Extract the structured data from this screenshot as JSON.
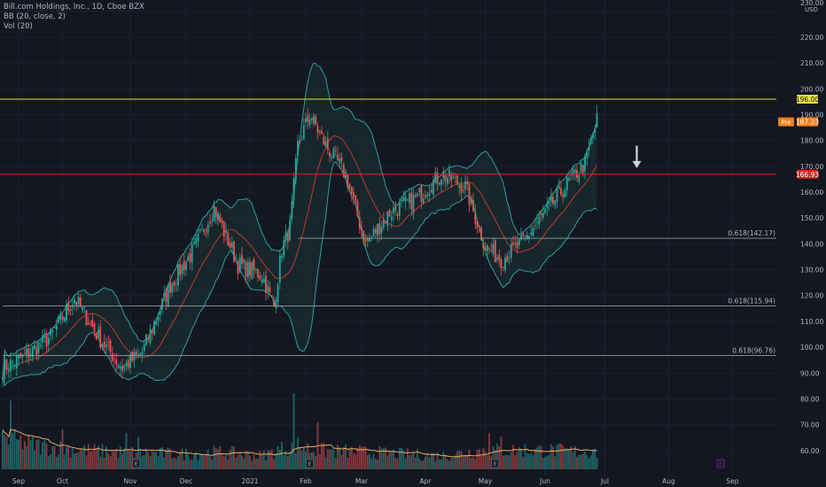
{
  "legend": {
    "symbol": "Bill.com Holdings, Inc., 1D, Cboe BZX",
    "bb": "BB (20, close, 2)",
    "vol": "Vol (20)"
  },
  "axis": {
    "currency": "USD",
    "top_label": "230.00"
  },
  "colors": {
    "background": "#131722",
    "up": "#26a69a",
    "down": "#ef5350",
    "bb_band": "#2aa198",
    "bb_fill": "#1a3a3a",
    "basis": "#c0392b",
    "vol_ma": "#f0a85c",
    "resistance": "#e8e23a",
    "support": "#e02424",
    "fib": "#9598a1",
    "pre_badge": "#f57f17",
    "arrow": "#d1d4dc",
    "earnings": "#9c27b0"
  },
  "chart_data": {
    "type": "candlestick",
    "symbol": "Bill.com Holdings, Inc.",
    "interval": "1D",
    "exchange": "Cboe BZX",
    "ylim": [
      50,
      233
    ],
    "y_ticks": [
      60,
      70,
      80,
      90,
      100,
      110,
      120,
      130,
      140,
      150,
      160,
      170,
      180,
      190,
      200,
      210,
      220,
      230
    ],
    "x_labels": [
      "Sep",
      "Oct",
      "Nov",
      "Dec",
      "2021",
      "Feb",
      "Mar",
      "Apr",
      "May",
      "Jun",
      "Jul",
      "Aug",
      "Sep"
    ],
    "close_anchors": [
      {
        "d": 0,
        "v": 92
      },
      {
        "d": 10,
        "v": 96
      },
      {
        "d": 24,
        "v": 104
      },
      {
        "d": 36,
        "v": 119
      },
      {
        "d": 48,
        "v": 104
      },
      {
        "d": 60,
        "v": 92
      },
      {
        "d": 70,
        "v": 98
      },
      {
        "d": 84,
        "v": 124
      },
      {
        "d": 96,
        "v": 138
      },
      {
        "d": 106,
        "v": 154
      },
      {
        "d": 118,
        "v": 132
      },
      {
        "d": 130,
        "v": 128
      },
      {
        "d": 136,
        "v": 116
      },
      {
        "d": 140,
        "v": 138
      },
      {
        "d": 144,
        "v": 146
      },
      {
        "d": 148,
        "v": 178
      },
      {
        "d": 154,
        "v": 190
      },
      {
        "d": 162,
        "v": 178
      },
      {
        "d": 172,
        "v": 167
      },
      {
        "d": 182,
        "v": 140
      },
      {
        "d": 194,
        "v": 152
      },
      {
        "d": 208,
        "v": 158
      },
      {
        "d": 220,
        "v": 167
      },
      {
        "d": 232,
        "v": 162
      },
      {
        "d": 242,
        "v": 139
      },
      {
        "d": 250,
        "v": 134
      },
      {
        "d": 260,
        "v": 140
      },
      {
        "d": 272,
        "v": 152
      },
      {
        "d": 284,
        "v": 164
      },
      {
        "d": 292,
        "v": 171
      },
      {
        "d": 298,
        "v": 188
      }
    ],
    "vol_anchors": [
      {
        "d": 0,
        "v": 16
      },
      {
        "d": 20,
        "v": 12
      },
      {
        "d": 40,
        "v": 10
      },
      {
        "d": 60,
        "v": 9
      },
      {
        "d": 90,
        "v": 8
      },
      {
        "d": 110,
        "v": 9
      },
      {
        "d": 130,
        "v": 7
      },
      {
        "d": 146,
        "v": 13
      },
      {
        "d": 156,
        "v": 10
      },
      {
        "d": 180,
        "v": 9
      },
      {
        "d": 220,
        "v": 7
      },
      {
        "d": 240,
        "v": 10
      },
      {
        "d": 270,
        "v": 10
      },
      {
        "d": 298,
        "v": 9
      }
    ],
    "vol_spikes": [
      {
        "d": 4,
        "v": 38
      },
      {
        "d": 30,
        "v": 22
      },
      {
        "d": 62,
        "v": 20
      },
      {
        "d": 68,
        "v": 18
      },
      {
        "d": 146,
        "v": 42
      },
      {
        "d": 158,
        "v": 26
      },
      {
        "d": 244,
        "v": 20
      },
      {
        "d": 250,
        "v": 18
      },
      {
        "d": 262,
        "v": 14
      },
      {
        "d": 296,
        "v": 11
      }
    ],
    "vol_scale_max": 45,
    "last_day_index": 298,
    "time_axis": [
      {
        "d": 8,
        "label": "Sep"
      },
      {
        "d": 30,
        "label": "Oct"
      },
      {
        "d": 64,
        "label": "Nov"
      },
      {
        "d": 92,
        "label": "Dec"
      },
      {
        "d": 124,
        "label": "2021"
      },
      {
        "d": 152,
        "label": "Feb"
      },
      {
        "d": 180,
        "label": "Mar"
      },
      {
        "d": 212,
        "label": "Apr"
      },
      {
        "d": 242,
        "label": "May"
      },
      {
        "d": 272,
        "label": "Jun"
      },
      {
        "d": 302,
        "label": "Jul"
      },
      {
        "d": 334,
        "label": "Aug"
      },
      {
        "d": 366,
        "label": "Sep"
      }
    ],
    "hlines": [
      {
        "price": 196.0,
        "label": "196.00",
        "kind": "resistance"
      },
      {
        "price": 166.93,
        "label": "166.93",
        "kind": "support"
      }
    ],
    "fib_lines": [
      {
        "price": 142.17,
        "label": "0.618(142.17)",
        "from_day": 148
      },
      {
        "price": 115.94,
        "label": "0.618(115.94)",
        "from_day": 0
      },
      {
        "price": 96.76,
        "label": "0.618(96.76)",
        "from_day": 0
      }
    ],
    "last_price": {
      "label": "Pre",
      "value": "187.23",
      "price": 187.23
    },
    "earnings_markers": [
      {
        "d": 67,
        "label": "E"
      },
      {
        "d": 154,
        "label": "E"
      },
      {
        "d": 247,
        "label": "E"
      },
      {
        "d": 360,
        "label": "E",
        "future": true
      }
    ],
    "annotation": {
      "type": "down-arrow",
      "d": 318,
      "price_top": 178,
      "price_bottom": 170
    }
  }
}
